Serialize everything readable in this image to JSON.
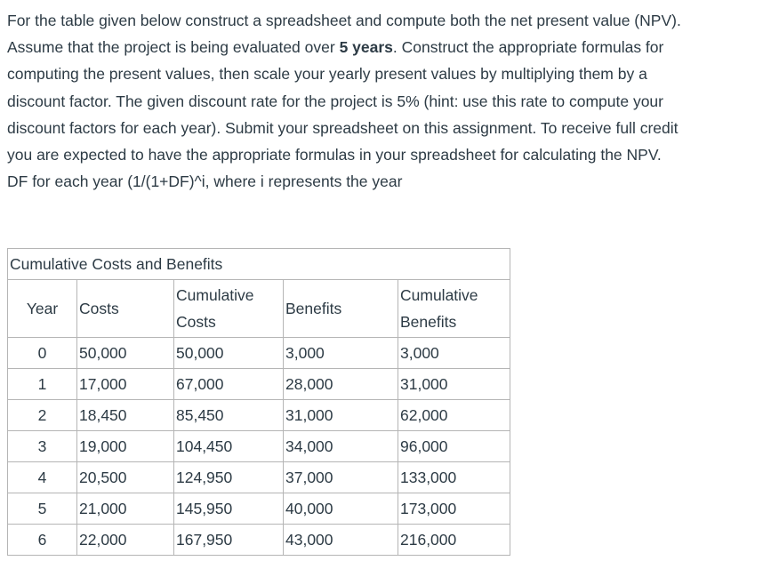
{
  "prompt": {
    "line1": "For the table given below construct a spreadsheet and compute both the net present value (NPV).",
    "line2_before": "Assume that the project is being evaluated over ",
    "line2_bold": "5 years",
    "line2_after": ". Construct the appropriate formulas for",
    "line3": "computing the present values, then scale your yearly present values by multiplying them by a",
    "line4": "discount factor.  The given discount rate for the project is 5% (hint: use this rate to compute your",
    "line5": "discount factors for each year). Submit your spreadsheet on this assignment. To receive full credit",
    "line6": "you are expected to have the appropriate formulas in your spreadsheet for calculating the NPV.",
    "line7": "DF for each year (1/(1+DF)^i, where i represents the year"
  },
  "table": {
    "caption": "Cumulative Costs and Benefits",
    "headers": {
      "year": "Year",
      "costs": "Costs",
      "cum_costs_1": "Cumulative",
      "cum_costs_2": "Costs",
      "benefits": "Benefits",
      "cum_benefits_1": "Cumulative",
      "cum_benefits_2": "Benefits"
    },
    "rows": [
      {
        "year": "0",
        "costs": "50,000",
        "cum_costs": "50,000",
        "benefits": "3,000",
        "cum_benefits": "3,000"
      },
      {
        "year": "1",
        "costs": "17,000",
        "cum_costs": "67,000",
        "benefits": "28,000",
        "cum_benefits": "31,000"
      },
      {
        "year": "2",
        "costs": "18,450",
        "cum_costs": "85,450",
        "benefits": "31,000",
        "cum_benefits": "62,000"
      },
      {
        "year": "3",
        "costs": "19,000",
        "cum_costs": "104,450",
        "benefits": "34,000",
        "cum_benefits": "96,000"
      },
      {
        "year": "4",
        "costs": "20,500",
        "cum_costs": "124,950",
        "benefits": "37,000",
        "cum_benefits": "133,000"
      },
      {
        "year": "5",
        "costs": "21,000",
        "cum_costs": "145,950",
        "benefits": "40,000",
        "cum_benefits": "173,000"
      },
      {
        "year": "6",
        "costs": "22,000",
        "cum_costs": "167,950",
        "benefits": "43,000",
        "cum_benefits": "216,000"
      }
    ]
  }
}
